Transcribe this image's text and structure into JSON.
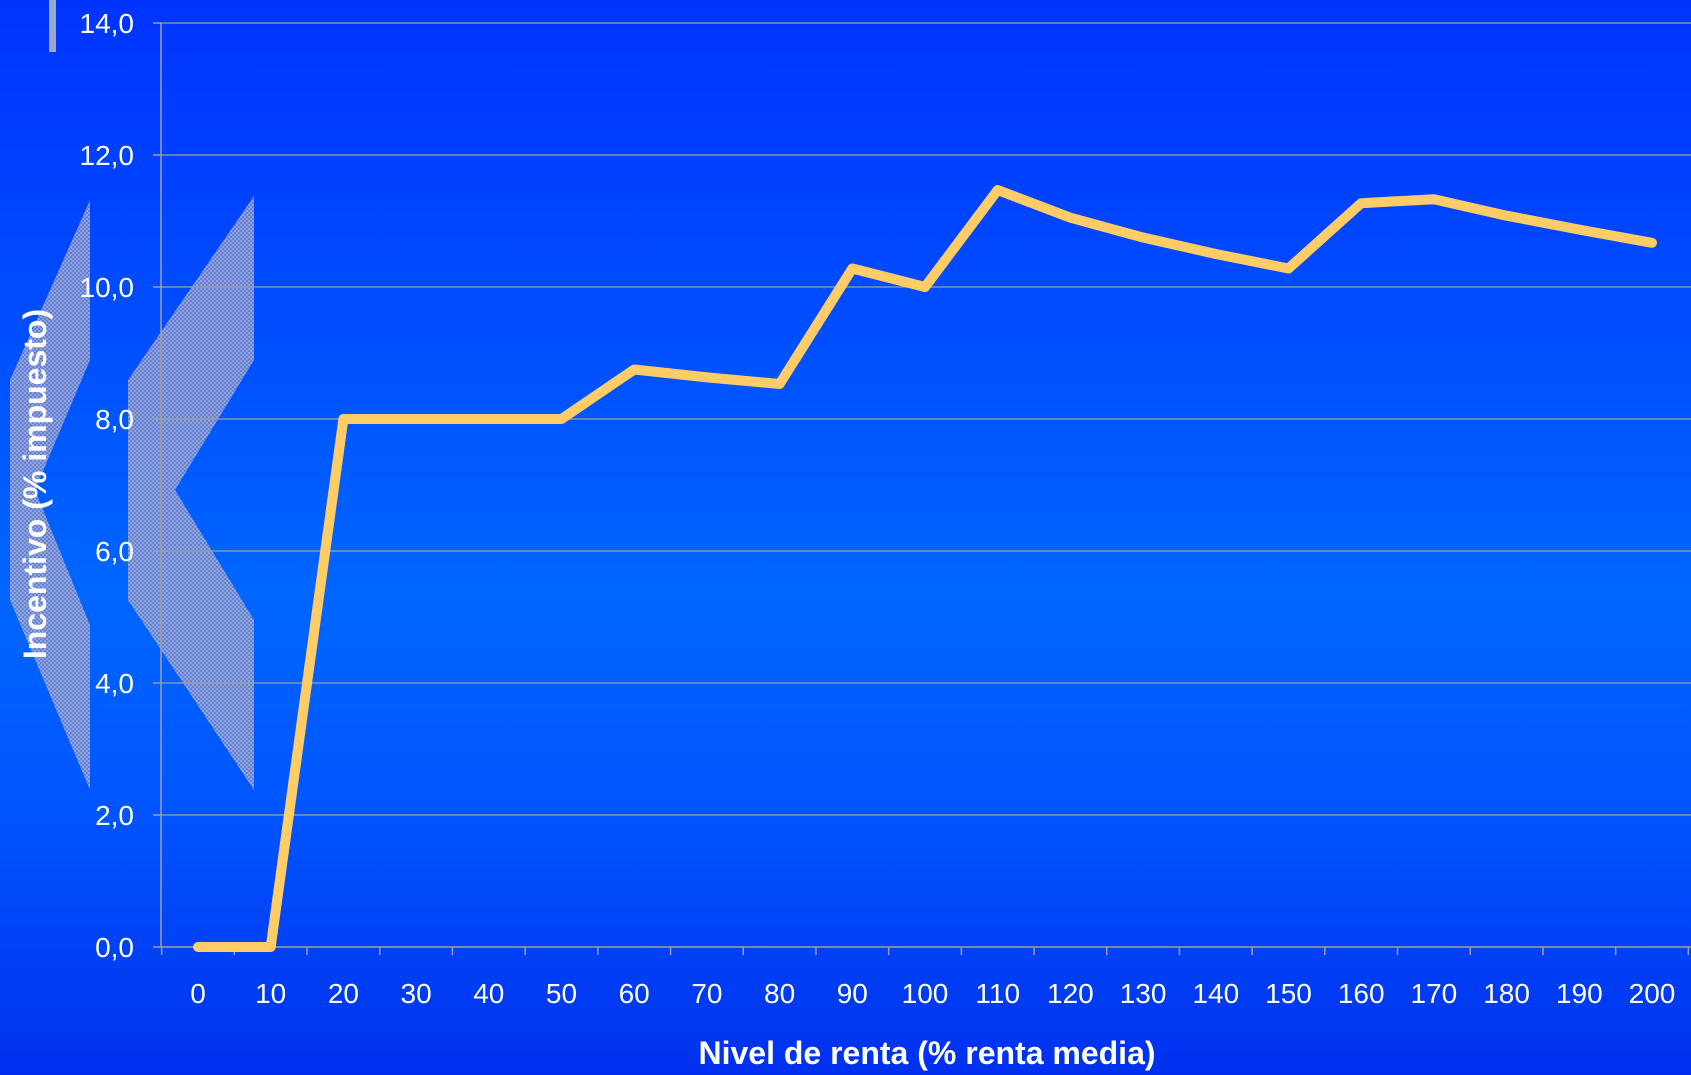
{
  "chart_data": {
    "type": "line",
    "title": "",
    "xlabel": "Nivel de renta (% renta media)",
    "ylabel": "Incentivo (% impuesto)",
    "ylim": [
      0,
      14
    ],
    "yticks": [
      "0,0",
      "2,0",
      "4,0",
      "6,0",
      "8,0",
      "10,0",
      "12,0",
      "14,0"
    ],
    "yticks_values": [
      0,
      2,
      4,
      6,
      8,
      10,
      12,
      14
    ],
    "categories": [
      "0",
      "10",
      "20",
      "30",
      "40",
      "50",
      "60",
      "70",
      "80",
      "90",
      "100",
      "110",
      "120",
      "130",
      "140",
      "150",
      "160",
      "170",
      "180",
      "190",
      "200"
    ],
    "grid": true,
    "legend": "none",
    "series": [
      {
        "color": "#ffcc66",
        "values": [
          0.0,
          0.0,
          8.0,
          8.0,
          8.0,
          8.0,
          8.75,
          8.63,
          8.53,
          10.28,
          10.0,
          11.47,
          11.05,
          10.75,
          10.5,
          10.28,
          11.27,
          11.33,
          11.08,
          10.87,
          10.67
        ]
      }
    ]
  }
}
